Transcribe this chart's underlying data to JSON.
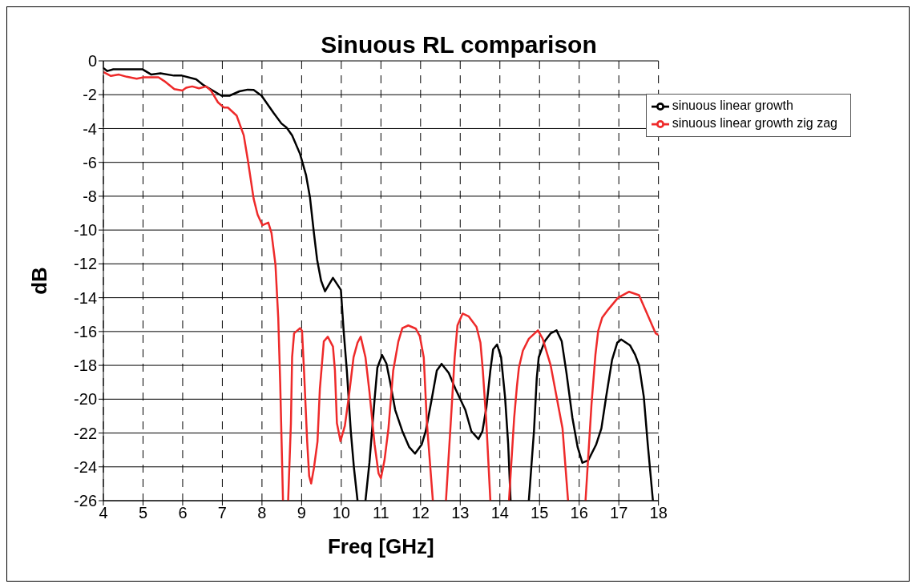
{
  "chart_data": {
    "type": "line",
    "title": "Sinuous RL comparison",
    "xlabel": "Freq [GHz]",
    "ylabel": "dB",
    "xlim": [
      4,
      18
    ],
    "xticks": [
      4,
      5,
      6,
      7,
      8,
      9,
      10,
      11,
      12,
      13,
      14,
      15,
      16,
      17,
      18
    ],
    "ylim": [
      -26,
      0
    ],
    "yticks": [
      -26,
      -24,
      -22,
      -20,
      -18,
      -16,
      -14,
      -12,
      -10,
      -8,
      -6,
      -4,
      -2,
      0
    ],
    "grid": true,
    "legend": "top right",
    "marker": "none",
    "line_style": "solid",
    "series": [
      {
        "name": "sinuous linear growth",
        "color": "#000000",
        "x": [
          4.0,
          4.1,
          4.25,
          4.99,
          5.21,
          5.44,
          5.78,
          5.98,
          6.34,
          6.53,
          6.98,
          7.18,
          7.43,
          7.64,
          7.79,
          7.99,
          8.29,
          8.49,
          8.62,
          8.76,
          8.96,
          9.11,
          9.21,
          9.31,
          9.39,
          9.49,
          9.59,
          9.79,
          9.99,
          10.06,
          10.14,
          10.24,
          10.32,
          10.41,
          10.5,
          10.61,
          10.71,
          10.84,
          10.91,
          11.03,
          11.14,
          11.24,
          11.36,
          11.54,
          11.71,
          11.86,
          12.03,
          12.13,
          12.28,
          12.41,
          12.53,
          12.71,
          12.88,
          13.13,
          13.28,
          13.46,
          13.56,
          13.66,
          13.76,
          13.83,
          13.93,
          14.03,
          14.13,
          14.21,
          14.27,
          14.5,
          14.73,
          14.86,
          14.93,
          14.98,
          15.13,
          15.28,
          15.43,
          15.56,
          15.68,
          15.83,
          15.96,
          16.08,
          16.23,
          16.43,
          16.56,
          16.68,
          16.83,
          16.96,
          17.06,
          17.28,
          17.41,
          17.51,
          17.63,
          17.73,
          17.86
        ],
        "values": [
          -0.42,
          -0.6,
          -0.5,
          -0.5,
          -0.81,
          -0.73,
          -0.87,
          -0.87,
          -1.09,
          -1.44,
          -2.06,
          -2.06,
          -1.8,
          -1.7,
          -1.72,
          -2.06,
          -3.07,
          -3.7,
          -3.94,
          -4.4,
          -5.5,
          -6.74,
          -8.06,
          -10.18,
          -11.74,
          -12.99,
          -13.62,
          -12.83,
          -13.54,
          -15.96,
          -18.3,
          -21.89,
          -24.07,
          -26,
          null,
          -26,
          -23.76,
          -20.01,
          -18.14,
          -17.39,
          -17.9,
          -19.08,
          -20.64,
          -21.89,
          -22.82,
          -23.22,
          -22.67,
          -21.89,
          -20.01,
          -18.3,
          -17.91,
          -18.45,
          -19.39,
          -20.64,
          -21.89,
          -22.36,
          -21.89,
          -20.48,
          -18.3,
          -17.05,
          -16.77,
          -17.52,
          -19.86,
          -22.67,
          -26,
          null,
          -26,
          -21.89,
          -18.77,
          -17.52,
          -16.58,
          -16.11,
          -15.93,
          -16.58,
          -18.45,
          -21.11,
          -22.82,
          -23.76,
          -23.61,
          -22.67,
          -21.73,
          -19.86,
          -17.67,
          -16.66,
          -16.47,
          -16.81,
          -17.36,
          -17.99,
          -19.86,
          -22.67,
          -26
        ]
      },
      {
        "name": "sinuous linear growth zig zag",
        "color": "#ee2a2a",
        "x": [
          4.0,
          4.19,
          4.39,
          4.59,
          4.84,
          5.01,
          5.39,
          5.54,
          5.79,
          5.99,
          6.09,
          6.24,
          6.41,
          6.59,
          6.71,
          6.89,
          7.04,
          7.14,
          7.36,
          7.54,
          7.64,
          7.79,
          7.89,
          8.01,
          8.16,
          8.24,
          8.34,
          8.41,
          8.46,
          8.53,
          8.6,
          8.66,
          8.73,
          8.76,
          8.81,
          8.96,
          9.01,
          9.06,
          9.14,
          9.19,
          9.24,
          9.31,
          9.4,
          9.46,
          9.56,
          9.66,
          9.79,
          9.84,
          9.89,
          9.98,
          10.09,
          10.19,
          10.31,
          10.41,
          10.49,
          10.61,
          10.71,
          10.84,
          10.94,
          11.0,
          11.09,
          11.19,
          11.31,
          11.44,
          11.54,
          11.69,
          11.88,
          11.98,
          12.08,
          12.16,
          12.31,
          12.5,
          12.64,
          12.76,
          12.86,
          12.93,
          13.06,
          13.21,
          13.41,
          13.51,
          13.57,
          13.66,
          13.76,
          14.0,
          14.23,
          14.36,
          14.43,
          14.48,
          14.58,
          14.73,
          14.96,
          15.08,
          15.28,
          15.43,
          15.58,
          15.72,
          15.9,
          16.16,
          16.31,
          16.41,
          16.48,
          16.58,
          16.73,
          16.98,
          17.26,
          17.51,
          17.93,
          18.0
        ],
        "values": [
          -0.66,
          -0.89,
          -0.81,
          -0.94,
          -1.05,
          -0.97,
          -0.97,
          -1.2,
          -1.67,
          -1.75,
          -1.59,
          -1.51,
          -1.62,
          -1.51,
          -1.75,
          -2.45,
          -2.76,
          -2.76,
          -3.23,
          -4.4,
          -5.81,
          -8.15,
          -9.09,
          -9.71,
          -9.56,
          -10.18,
          -12.05,
          -15.18,
          -19.08,
          -26,
          null,
          -26,
          -21.42,
          -17.52,
          -16.11,
          -15.8,
          -15.96,
          -18.3,
          -22.51,
          -24.54,
          -24.98,
          -24.07,
          -22.51,
          -19.39,
          -16.58,
          -16.31,
          -16.89,
          -18.3,
          -21.42,
          -22.48,
          -21.58,
          -19.86,
          -17.52,
          -16.66,
          -16.31,
          -17.52,
          -19.55,
          -22.67,
          -24.39,
          -24.67,
          -23.61,
          -21.73,
          -18.3,
          -16.58,
          -15.8,
          -15.64,
          -15.83,
          -16.27,
          -17.52,
          -21.42,
          -26,
          null,
          -26,
          -21.42,
          -17.52,
          -15.64,
          -14.94,
          -15.1,
          -15.72,
          -16.66,
          -18.3,
          -21.42,
          -26,
          null,
          -26,
          -21.11,
          -19.24,
          -18.14,
          -17.13,
          -16.43,
          -15.93,
          -16.43,
          -17.99,
          -19.86,
          -21.73,
          -26,
          null,
          -26,
          -20.33,
          -17.36,
          -15.96,
          -15.18,
          -14.71,
          -14.0,
          -13.65,
          -13.85,
          -16.11,
          -16.2
        ]
      }
    ]
  }
}
